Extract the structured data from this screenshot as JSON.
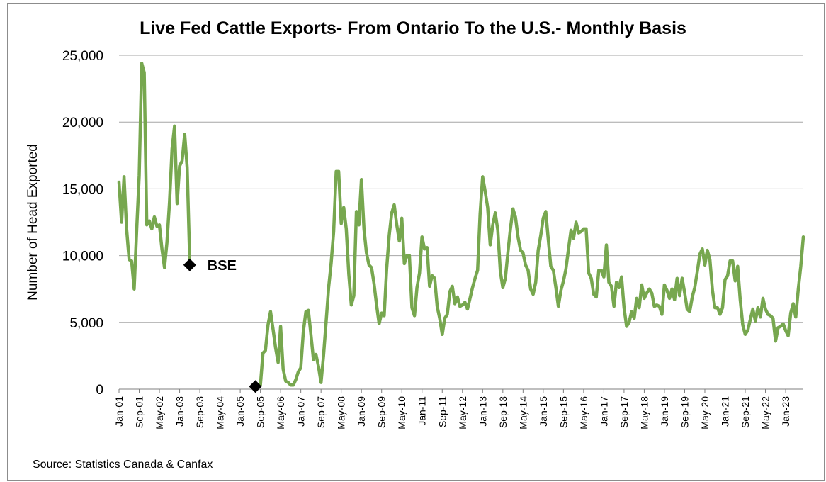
{
  "chart_data": {
    "type": "line",
    "title": "Live Fed Cattle Exports- From Ontario To the U.S.- Monthly Basis",
    "xlabel": "",
    "ylabel": "Number of Head Exported",
    "ylim": [
      0,
      25000
    ],
    "yticks": [
      0,
      5000,
      10000,
      15000,
      20000,
      25000
    ],
    "ytick_labels": [
      "0",
      "5,000",
      "10,000",
      "15,000",
      "20,000",
      "25,000"
    ],
    "grid": "horizontal",
    "x_start": "Jan-01",
    "x_tick_labels": [
      "Jan-01",
      "Sep-01",
      "May-02",
      "Jan-03",
      "Sep-03",
      "May-04",
      "Jan-05",
      "Sep-05",
      "May-06",
      "Jan-07",
      "Sep-07",
      "May-08",
      "Jan-09",
      "Sep-09",
      "May-10",
      "Jan-11",
      "Sep-11",
      "May-12",
      "Jan-13",
      "Sep-13",
      "May-14",
      "Jan-15",
      "Sep-15",
      "May-16",
      "Jan-17",
      "Sep-17",
      "May-18",
      "Jan-19",
      "Sep-19",
      "May-20",
      "Jan-21",
      "Sep-21",
      "May-22",
      "Jan-23"
    ],
    "series": [
      {
        "color": "#77a74f",
        "values": [
          15500,
          12500,
          15900,
          12000,
          9700,
          9600,
          7500,
          12000,
          16000,
          24400,
          23700,
          12300,
          12600,
          12000,
          12900,
          12200,
          12300,
          10500,
          9100,
          11000,
          14000,
          18000,
          19700,
          13900,
          16700,
          17100,
          19100,
          16600,
          9700,
          null,
          null,
          null,
          null,
          null,
          null,
          null,
          null,
          null,
          null,
          null,
          null,
          null,
          null,
          null,
          null,
          null,
          null,
          null,
          null,
          null,
          null,
          null,
          null,
          null,
          null,
          null,
          300,
          2700,
          2900,
          4800,
          5800,
          4500,
          3100,
          2000,
          4700,
          1500,
          600,
          500,
          300,
          300,
          700,
          1300,
          1600,
          4300,
          5800,
          5900,
          4100,
          2200,
          2600,
          1700,
          500,
          2500,
          5000,
          7600,
          9400,
          11800,
          16300,
          16300,
          12400,
          13600,
          12000,
          8600,
          6300,
          7000,
          13300,
          12300,
          15700,
          12000,
          10200,
          9300,
          9100,
          7900,
          6300,
          4900,
          5700,
          5500,
          9000,
          11500,
          13200,
          13800,
          12300,
          11100,
          12800,
          9400,
          10000,
          10000,
          6100,
          5500,
          7600,
          8700,
          11400,
          10500,
          10600,
          7700,
          8500,
          8300,
          6200,
          5300,
          4100,
          5300,
          5600,
          7300,
          7700,
          6400,
          6900,
          6200,
          6300,
          6500,
          6000,
          6800,
          7600,
          8300,
          8900,
          13100,
          15900,
          14800,
          13600,
          10800,
          12300,
          13200,
          11900,
          8800,
          7600,
          8300,
          10200,
          12000,
          13500,
          12900,
          11400,
          10400,
          10200,
          9300,
          8900,
          7500,
          7100,
          8000,
          10400,
          11500,
          12800,
          13300,
          11200,
          9200,
          8900,
          7600,
          6200,
          7400,
          8100,
          9000,
          10500,
          11900,
          11300,
          12500,
          11700,
          11800,
          12000,
          12000,
          8700,
          8300,
          7100,
          6900,
          8900,
          8900,
          8400,
          10800,
          8000,
          7700,
          6200,
          8000,
          7600,
          8400,
          6100,
          4700,
          5000,
          5800,
          5300,
          6800,
          6100,
          7800,
          6800,
          7200,
          7500,
          7200,
          6200,
          6300,
          6200,
          5600,
          7800,
          7400,
          6800,
          7500,
          6700,
          8300,
          7000,
          8300,
          7200,
          6000,
          5800,
          6900,
          7600,
          8800,
          10100,
          10500,
          9300,
          10400,
          9700,
          7400,
          6100,
          6100,
          5600,
          6100,
          8200,
          8500,
          9600,
          9600,
          8100,
          9200,
          6700,
          4800,
          4100,
          4400,
          5200,
          6000,
          5100,
          6100,
          5400,
          6800,
          6000,
          5600,
          5500,
          5300,
          3600,
          4600,
          4700,
          4900,
          4400,
          4000,
          5700,
          6400,
          5400,
          7500,
          9200,
          11400
        ]
      }
    ],
    "markers": [
      {
        "label": "BSE",
        "x": "May-03",
        "y": 9300
      },
      {
        "label": "",
        "x": "Jul-05",
        "y": 200
      }
    ]
  },
  "source": "Source: Statistics Canada & Canfax"
}
